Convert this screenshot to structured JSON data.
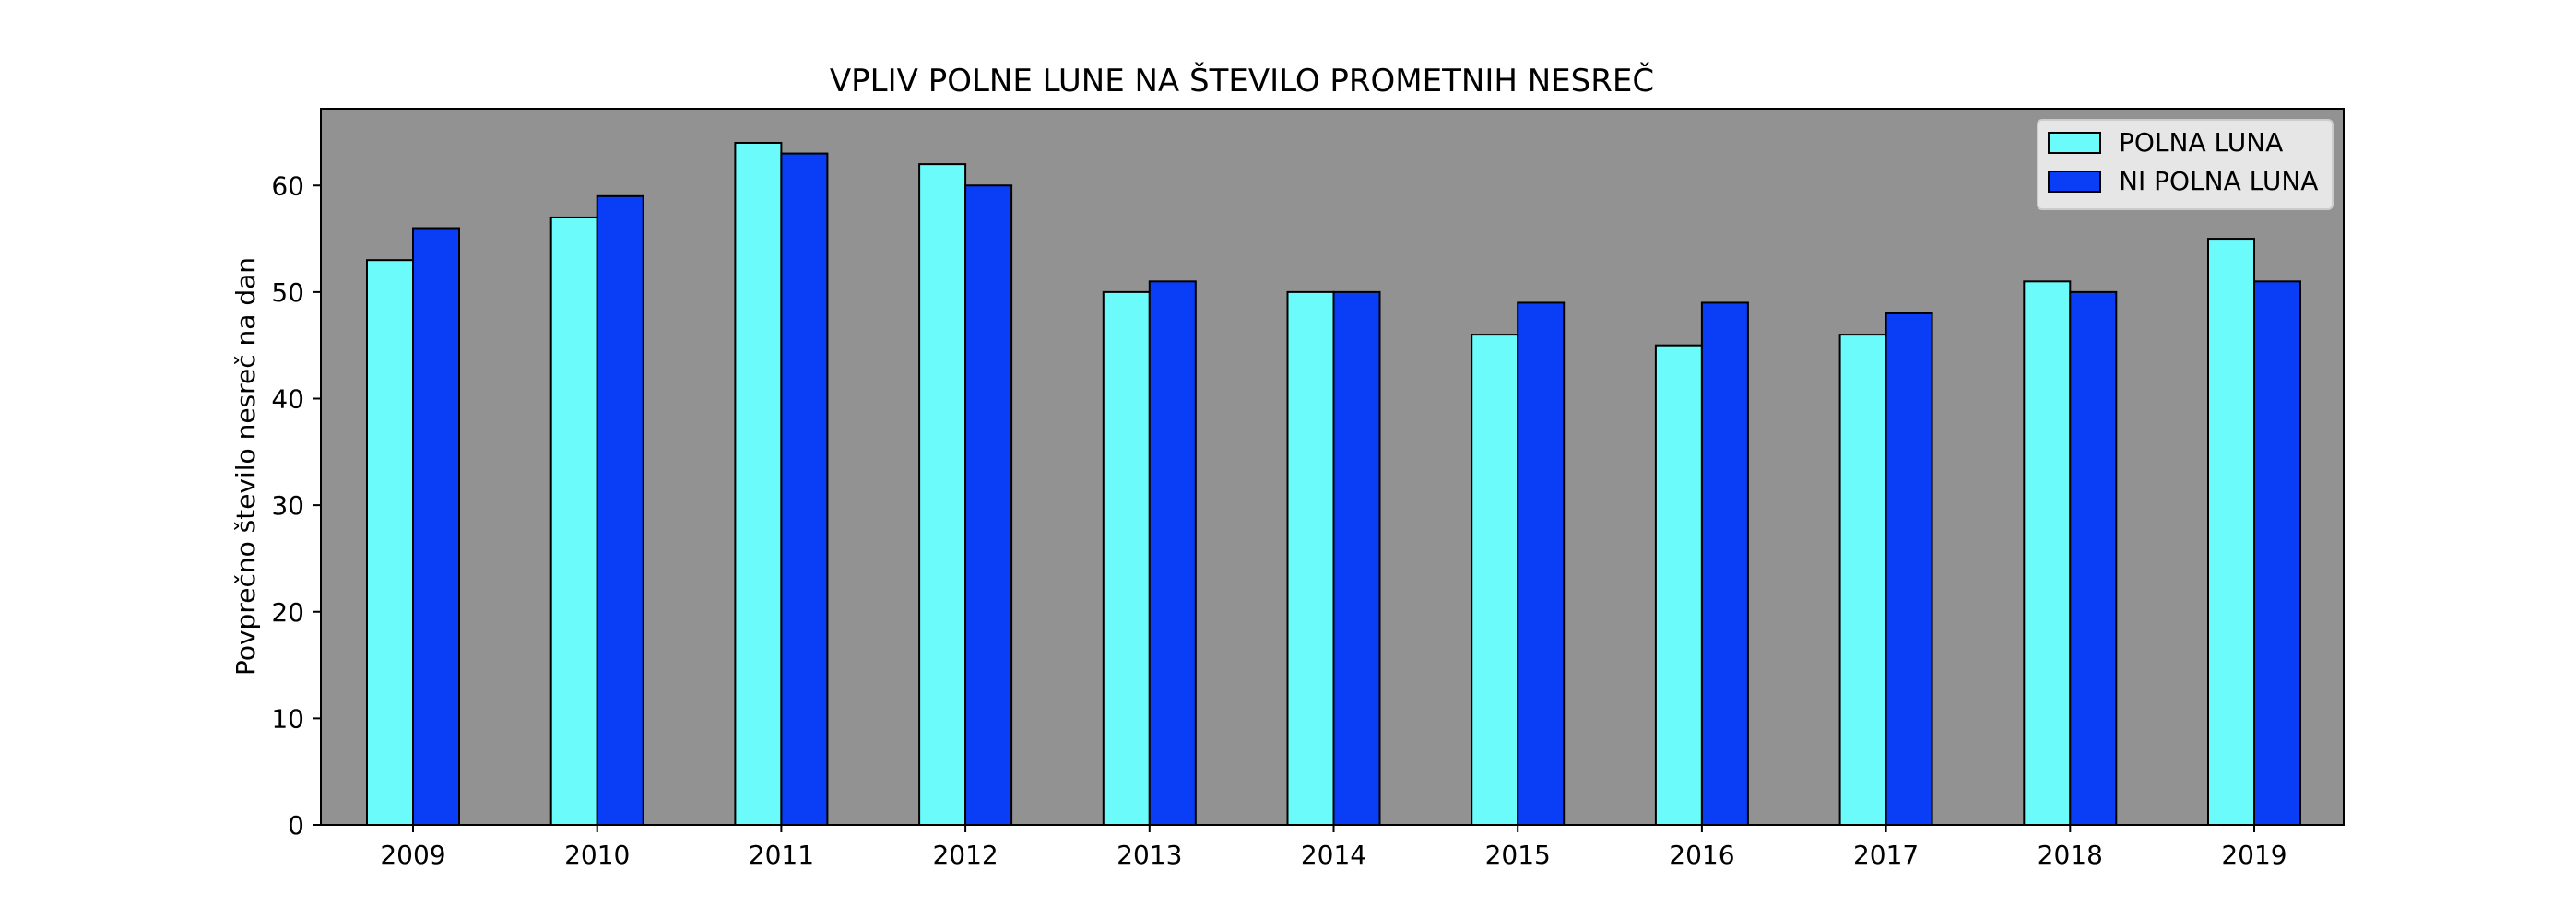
{
  "chart_data": {
    "type": "bar",
    "title": "VPLIV POLNE LUNE NA ŠTEVILO PROMETNIH NESREČ",
    "xlabel": "",
    "ylabel": "Povprečno število nesreč na dan",
    "categories": [
      "2009",
      "2010",
      "2011",
      "2012",
      "2013",
      "2014",
      "2015",
      "2016",
      "2017",
      "2018",
      "2019"
    ],
    "series": [
      {
        "name": "POLNA LUNA",
        "color": "#6bfbfb",
        "values": [
          53,
          57,
          64,
          62,
          50,
          50,
          46,
          45,
          46,
          51,
          55
        ]
      },
      {
        "name": "NI POLNA LUNA",
        "color": "#0a3ef6",
        "values": [
          56,
          59,
          63,
          60,
          51,
          50,
          49,
          49,
          48,
          50,
          51
        ]
      }
    ],
    "ylim": [
      0,
      67.2
    ],
    "yticks": [
      0,
      10,
      20,
      30,
      40,
      50,
      60
    ],
    "grid": false,
    "legend_position": "top-right",
    "plot_background": "#929292",
    "bar_edge_color": "#000000"
  }
}
